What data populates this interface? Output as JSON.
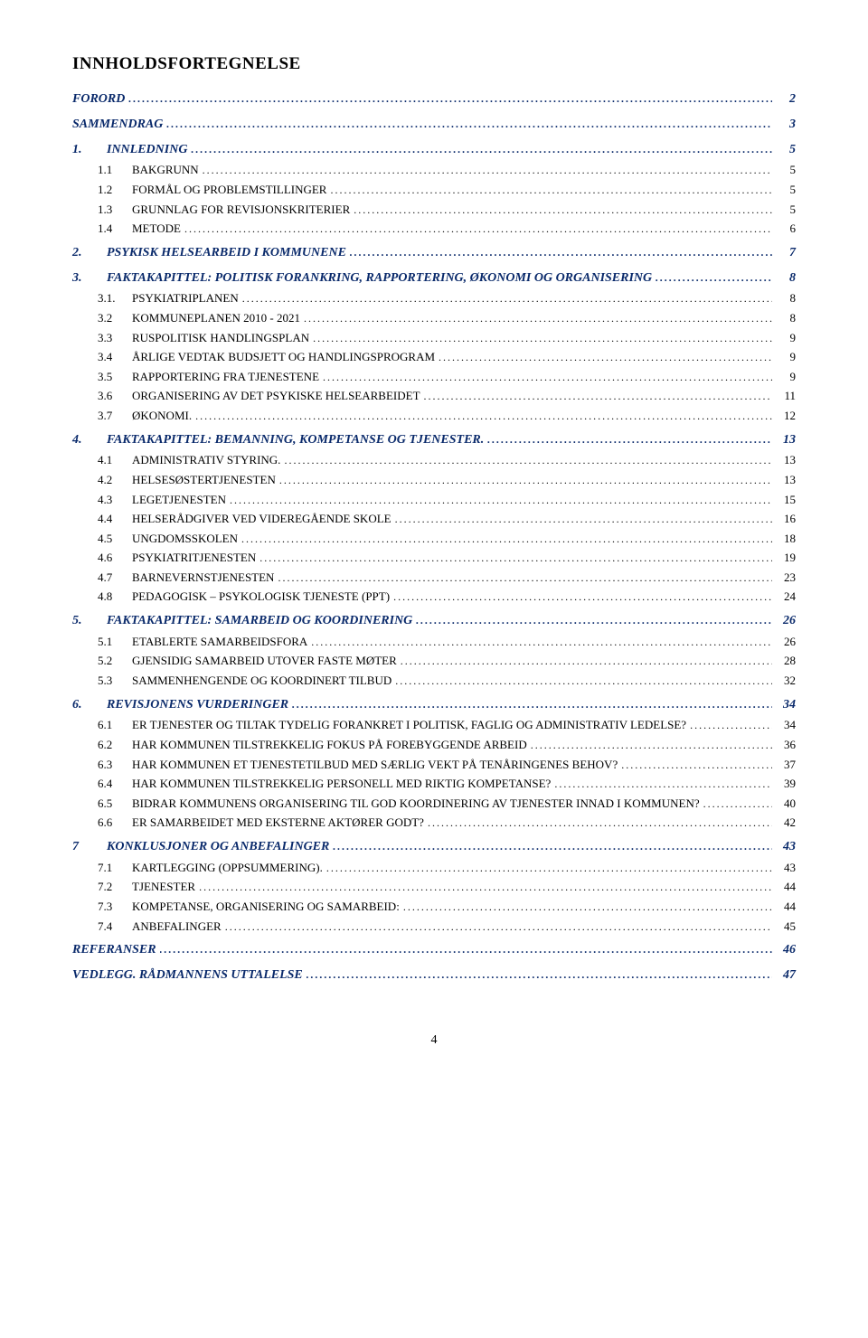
{
  "title": "INNHOLDSFORTEGNELSE",
  "footerPage": "4",
  "colors": {
    "heading": "#0a2a6b",
    "body": "#000000",
    "background": "#ffffff"
  },
  "entries": [
    {
      "level": 0,
      "num": "",
      "text": "FORORD",
      "page": "2"
    },
    {
      "level": 0,
      "num": "",
      "text": "SAMMENDRAG",
      "page": "3"
    },
    {
      "level": 1,
      "num": "1.",
      "text": "INNLEDNING",
      "page": "5"
    },
    {
      "level": 2,
      "num": "1.1",
      "text": "BAKGRUNN",
      "page": "5"
    },
    {
      "level": 2,
      "num": "1.2",
      "text": "FORMÅL OG PROBLEMSTILLINGER",
      "page": "5"
    },
    {
      "level": 2,
      "num": "1.3",
      "text": "GRUNNLAG FOR REVISJONSKRITERIER",
      "page": "5"
    },
    {
      "level": 2,
      "num": "1.4",
      "text": "METODE",
      "page": "6"
    },
    {
      "level": 1,
      "num": "2.",
      "text": "PSYKISK HELSEARBEID I KOMMUNENE",
      "page": "7"
    },
    {
      "level": 1,
      "num": "3.",
      "text": "FAKTAKAPITTEL: POLITISK FORANKRING, RAPPORTERING, ØKONOMI OG ORGANISERING",
      "page": "8"
    },
    {
      "level": 2,
      "num": "3.1.",
      "text": "PSYKIATRIPLANEN",
      "page": "8"
    },
    {
      "level": 2,
      "num": "3.2",
      "text": "KOMMUNEPLANEN 2010 - 2021",
      "page": "8"
    },
    {
      "level": 2,
      "num": "3.3",
      "text": "RUSPOLITISK HANDLINGSPLAN",
      "page": "9"
    },
    {
      "level": 2,
      "num": "3.4",
      "text": "ÅRLIGE VEDTAK BUDSJETT OG HANDLINGSPROGRAM",
      "page": "9"
    },
    {
      "level": 2,
      "num": "3.5",
      "text": "RAPPORTERING FRA TJENESTENE",
      "page": "9"
    },
    {
      "level": 2,
      "num": "3.6",
      "text": "ORGANISERING AV DET PSYKISKE HELSEARBEIDET",
      "page": "11"
    },
    {
      "level": 2,
      "num": "3.7",
      "text": "ØKONOMI.",
      "page": "12"
    },
    {
      "level": 1,
      "num": "4.",
      "text": "FAKTAKAPITTEL: BEMANNING, KOMPETANSE OG TJENESTER.",
      "page": "13"
    },
    {
      "level": 2,
      "num": "4.1",
      "text": "ADMINISTRATIV STYRING.",
      "page": "13"
    },
    {
      "level": 2,
      "num": "4.2",
      "text": "HELSESØSTERTJENESTEN",
      "page": "13"
    },
    {
      "level": 2,
      "num": "4.3",
      "text": "LEGETJENESTEN",
      "page": "15"
    },
    {
      "level": 2,
      "num": "4.4",
      "text": "HELSERÅDGIVER VED VIDEREGÅENDE SKOLE",
      "page": "16"
    },
    {
      "level": 2,
      "num": "4.5",
      "text": "UNGDOMSSKOLEN",
      "page": "18"
    },
    {
      "level": 2,
      "num": "4.6",
      "text": "PSYKIATRITJENESTEN",
      "page": "19"
    },
    {
      "level": 2,
      "num": "4.7",
      "text": "BARNEVERNSTJENESTEN",
      "page": "23"
    },
    {
      "level": 2,
      "num": "4.8",
      "text": "PEDAGOGISK – PSYKOLOGISK TJENESTE (PPT)",
      "page": "24"
    },
    {
      "level": 1,
      "num": "5.",
      "text": "FAKTAKAPITTEL: SAMARBEID OG KOORDINERING",
      "page": "26"
    },
    {
      "level": 2,
      "num": "5.1",
      "text": "ETABLERTE SAMARBEIDSFORA",
      "page": "26"
    },
    {
      "level": 2,
      "num": "5.2",
      "text": "GJENSIDIG SAMARBEID UTOVER FASTE MØTER",
      "page": "28"
    },
    {
      "level": 2,
      "num": "5.3",
      "text": "SAMMENHENGENDE OG KOORDINERT TILBUD",
      "page": "32"
    },
    {
      "level": 1,
      "num": "6.",
      "text": "REVISJONENS VURDERINGER",
      "page": "34"
    },
    {
      "level": 2,
      "num": "6.1",
      "text": "ER TJENESTER OG TILTAK TYDELIG FORANKRET I POLITISK,  FAGLIG OG ADMINISTRATIV LEDELSE?",
      "page": "34"
    },
    {
      "level": 2,
      "num": "6.2",
      "text": "HAR KOMMUNEN TILSTREKKELIG FOKUS PÅ FOREBYGGENDE  ARBEID",
      "page": "36"
    },
    {
      "level": 2,
      "num": "6.3",
      "text": "HAR KOMMUNEN ET TJENESTETILBUD MED SÆRLIG VEKT PÅ  TENÅRINGENES BEHOV?",
      "page": "37"
    },
    {
      "level": 2,
      "num": "6.4",
      "text": "HAR KOMMUNEN TILSTREKKELIG PERSONELL MED RIKTIG  KOMPETANSE?",
      "page": "39"
    },
    {
      "level": 2,
      "num": "6.5",
      "text": "BIDRAR KOMMUNENS ORGANISERING TIL GOD  KOORDINERING AV TJENESTER INNAD I KOMMUNEN?",
      "page": "40"
    },
    {
      "level": 2,
      "num": "6.6",
      "text": "ER SAMARBEIDET MED EKSTERNE AKTØRER GODT?",
      "page": "42"
    },
    {
      "level": 1,
      "num": "7",
      "text": "KONKLUSJONER OG ANBEFALINGER",
      "page": "43"
    },
    {
      "level": 2,
      "num": "7.1",
      "text": "KARTLEGGING (OPPSUMMERING).",
      "page": "43"
    },
    {
      "level": 2,
      "num": "7.2",
      "text": "TJENESTER",
      "page": "44"
    },
    {
      "level": 2,
      "num": "7.3",
      "text": "KOMPETANSE, ORGANISERING OG SAMARBEID:",
      "page": "44"
    },
    {
      "level": 2,
      "num": "7.4",
      "text": "ANBEFALINGER",
      "page": "45"
    },
    {
      "level": 0,
      "num": "",
      "text": "REFERANSER",
      "page": "46"
    },
    {
      "level": 0,
      "num": "",
      "text": "VEDLEGG. RÅDMANNENS UTTALELSE",
      "page": "47"
    }
  ]
}
